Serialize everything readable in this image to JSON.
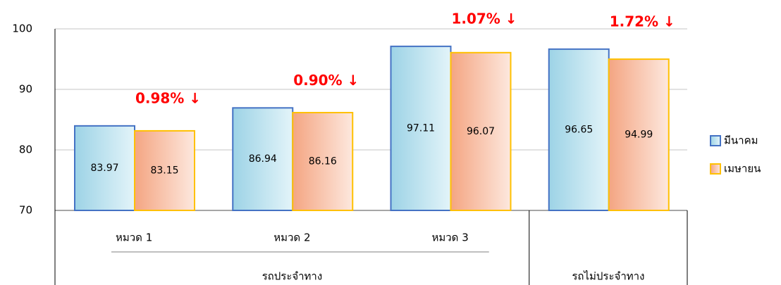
{
  "chart_data": {
    "type": "bar",
    "categories": [
      "หมวด 1",
      "หมวด 2",
      "หมวด 3",
      null
    ],
    "groups": [
      {
        "label": "รถประจำทาง",
        "span": 3
      },
      {
        "label": "รถไม่ประจำทาง",
        "span": 1
      }
    ],
    "series": [
      {
        "name": "มีนาคม",
        "color": "#9dd3e6",
        "edge": "#4472c4",
        "values": [
          83.97,
          86.94,
          97.11,
          96.65
        ]
      },
      {
        "name": "เมษายน",
        "color": "#f4a582",
        "edge": "#ffc000",
        "values": [
          83.15,
          86.16,
          96.07,
          94.99
        ]
      }
    ],
    "annotations": [
      "0.98% ↓",
      "0.90% ↓",
      "1.07% ↓",
      "1.72% ↓"
    ],
    "ylim": [
      70,
      100
    ],
    "yticks": [
      70,
      80,
      90,
      100
    ],
    "grid": true,
    "legend": "right"
  }
}
